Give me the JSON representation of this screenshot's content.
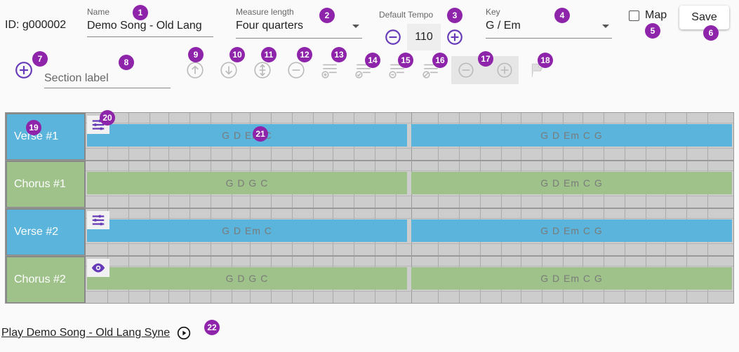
{
  "colors": {
    "accent": "#673ab7",
    "badge": "#8e24aa",
    "verse": "#5ab4db",
    "chorus": "#9fc28b"
  },
  "header": {
    "id_text": "ID: g000002",
    "name_label": "Name",
    "name_value": "Demo Song - Old Lang",
    "measure_label": "Measure length",
    "measure_value": "Four quarters",
    "tempo_label": "Default Tempo",
    "tempo_value": "110",
    "key_label": "Key",
    "key_value": "G / Em",
    "map_label": "Map",
    "save_label": "Save"
  },
  "toolbar": {
    "section_label_placeholder": "Section label",
    "icons": [
      "add-section-icon",
      "move-up-icon",
      "move-down-icon",
      "split-icon",
      "remove-icon",
      "add-list-icon",
      "check-list-icon",
      "remove-list-icon",
      "disable-list-icon",
      "zoom-out-icon",
      "zoom-in-icon",
      "flag-icon"
    ]
  },
  "badges": [
    "1",
    "2",
    "3",
    "4",
    "5",
    "6",
    "7",
    "8",
    "9",
    "10",
    "11",
    "12",
    "13",
    "14",
    "15",
    "16",
    "17",
    "18",
    "19",
    "20",
    "21",
    "22"
  ],
  "sections": [
    {
      "label": "Verse #1",
      "kind": "verse",
      "icon": "tune-icon",
      "bars": [
        "G D Em C",
        "G D Em C G"
      ]
    },
    {
      "label": "Chorus #1",
      "kind": "chorus",
      "icon": "",
      "bars": [
        "G D G C",
        "G D Em C G"
      ]
    },
    {
      "label": "Verse #2",
      "kind": "verse",
      "icon": "tune-icon",
      "bars": [
        "G D Em C",
        "G D Em C G"
      ]
    },
    {
      "label": "Chorus #2",
      "kind": "chorus",
      "icon": "eye-icon",
      "bars": [
        "G D G C",
        "G D Em C G"
      ]
    }
  ],
  "footer": {
    "play_link": "Play Demo Song - Old Lang Syne"
  }
}
